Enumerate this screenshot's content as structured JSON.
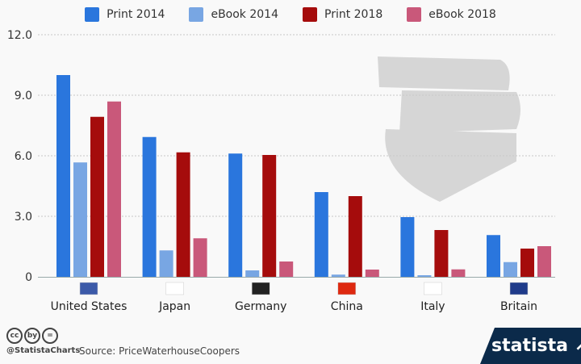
{
  "chart_data": {
    "type": "bar",
    "categories": [
      "United States",
      "Japan",
      "Germany",
      "China",
      "Italy",
      "Britain"
    ],
    "series": [
      {
        "name": "Print 2014",
        "color": "#2a76dd",
        "values": [
          10.0,
          6.93,
          6.11,
          4.2,
          2.96,
          2.07
        ]
      },
      {
        "name": "eBook 2014",
        "color": "#78a6e3",
        "values": [
          5.67,
          1.31,
          0.32,
          0.11,
          0.08,
          0.73
        ]
      },
      {
        "name": "Print 2018",
        "color": "#a50c0c",
        "values": [
          7.93,
          6.17,
          6.04,
          4.0,
          2.32,
          1.4
        ]
      },
      {
        "name": "eBook 2018",
        "color": "#c9587a",
        "values": [
          8.69,
          1.91,
          0.76,
          0.36,
          0.37,
          1.52
        ]
      }
    ],
    "yticks": [
      "0",
      "3.0",
      "6.0",
      "9.0",
      "12.0"
    ],
    "ylim": [
      0,
      12
    ],
    "grid": true,
    "legend": "top",
    "flags": [
      "us-flag",
      "japan-flag",
      "germany-flag",
      "china-flag",
      "italy-flag",
      "uk-flag"
    ],
    "decoration": "books-icon"
  },
  "footer": {
    "handle": "@StatistaCharts",
    "source": "Source: PriceWaterhouseCoopers",
    "brand": "statista",
    "license_icons": [
      "cc",
      "by",
      "="
    ]
  }
}
